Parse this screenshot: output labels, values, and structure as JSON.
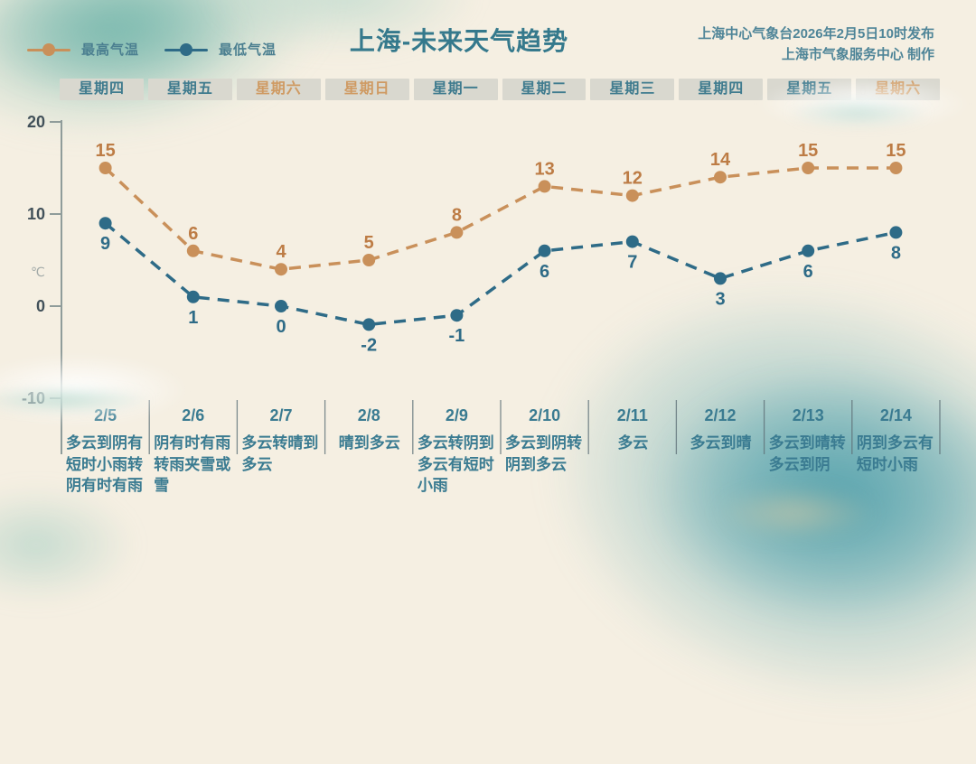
{
  "title": "上海-未来天气趋势",
  "publisher": {
    "line1": "上海中心气象台2026年2月5日10时发布",
    "line2": "上海市气象服务中心 制作"
  },
  "legend": [
    {
      "label": "最高气温",
      "color": "#c9905a"
    },
    {
      "label": "最低气温",
      "color": "#2e6b87"
    }
  ],
  "weekdays": [
    {
      "label": "星期四",
      "weekend": false
    },
    {
      "label": "星期五",
      "weekend": false
    },
    {
      "label": "星期六",
      "weekend": true
    },
    {
      "label": "星期日",
      "weekend": true
    },
    {
      "label": "星期一",
      "weekend": false
    },
    {
      "label": "星期二",
      "weekend": false
    },
    {
      "label": "星期三",
      "weekend": false
    },
    {
      "label": "星期四",
      "weekend": false
    },
    {
      "label": "星期五",
      "weekend": false
    },
    {
      "label": "星期六",
      "weekend": true
    }
  ],
  "chart_data": {
    "type": "line",
    "categories": [
      "2/5",
      "2/6",
      "2/7",
      "2/8",
      "2/9",
      "2/10",
      "2/11",
      "2/12",
      "2/13",
      "2/14"
    ],
    "series": [
      {
        "name": "最高气温",
        "values": [
          15,
          6,
          4,
          5,
          8,
          13,
          12,
          14,
          15,
          15
        ],
        "color": "#c9905a",
        "label_color": "#bd7c45",
        "label_position": "above"
      },
      {
        "name": "最低气温",
        "values": [
          9,
          1,
          0,
          -2,
          -1,
          6,
          7,
          3,
          6,
          8
        ],
        "color": "#2e6b87",
        "label_color": "#2e6b87",
        "label_position": "below"
      }
    ],
    "ylabel": "℃",
    "yticks": [
      20,
      10,
      0,
      -10
    ],
    "ylim": [
      -10,
      20
    ],
    "grid": false,
    "line_style": "dashed",
    "legend_position": "top-left",
    "tick_label_color": "#42515a",
    "axis_color": "#8f9c9a"
  },
  "weather": [
    "多云到阴有短时小雨转阴有时有雨",
    "阴有时有雨转雨夹雪或雪",
    "多云转晴到多云",
    "晴到多云",
    "多云转阴到多云有短时小雨",
    "多云到阴转阴到多云",
    "多云",
    "多云到晴",
    "多云到晴转多云到阴",
    "阴到多云有短时小雨"
  ]
}
